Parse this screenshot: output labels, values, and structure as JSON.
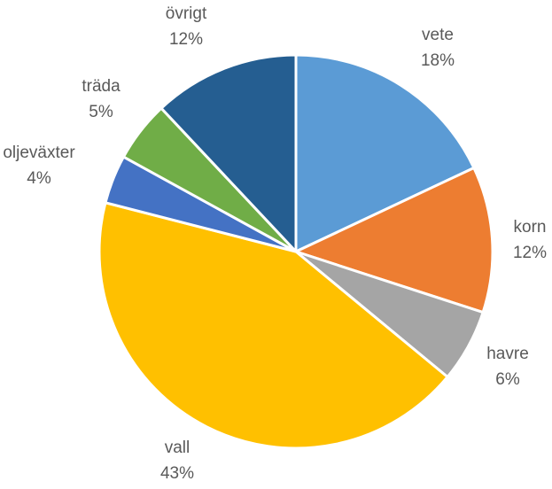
{
  "chart_data": {
    "type": "pie",
    "title": "",
    "categories": [
      "vete",
      "korn",
      "havre",
      "vall",
      "oljeväxter",
      "träda",
      "övrigt"
    ],
    "values": [
      18,
      12,
      6,
      43,
      4,
      5,
      12
    ],
    "value_labels": [
      "18%",
      "12%",
      "6%",
      "43%",
      "4%",
      "5%",
      "12%"
    ],
    "colors": [
      "#5B9BD5",
      "#ED7D31",
      "#A5A5A5",
      "#FFC000",
      "#4472C4",
      "#70AD47",
      "#255E91"
    ],
    "start_angle": "12 o'clock",
    "direction": "clockwise",
    "legend": "none"
  }
}
